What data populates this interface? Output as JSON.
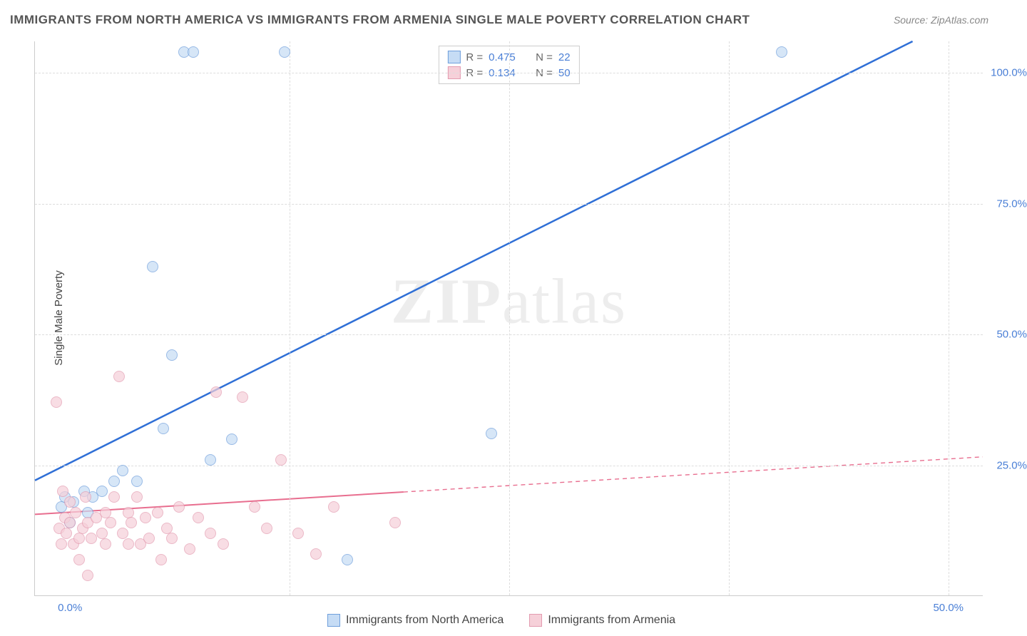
{
  "title": "IMMIGRANTS FROM NORTH AMERICA VS IMMIGRANTS FROM ARMENIA SINGLE MALE POVERTY CORRELATION CHART",
  "source": "Source: ZipAtlas.com",
  "watermark": {
    "part1": "ZIP",
    "part2": "atlas"
  },
  "chart": {
    "type": "scatter",
    "background_color": "#ffffff",
    "grid_color": "#dddddd",
    "axis_color": "#cccccc",
    "y_axis_title": "Single Male Poverty",
    "y_axis_color": "#444444",
    "xlim_pct": [
      -2,
      52
    ],
    "ylim_pct": [
      0,
      106
    ],
    "x_ticks": [
      {
        "value": 0.0,
        "label": "0.0%",
        "color": "#4a7fd6"
      },
      {
        "value": 50.0,
        "label": "50.0%",
        "color": "#4a7fd6"
      }
    ],
    "y_ticks": [
      {
        "value": 25.0,
        "label": "25.0%",
        "color": "#4a7fd6"
      },
      {
        "value": 50.0,
        "label": "50.0%",
        "color": "#4a7fd6"
      },
      {
        "value": 75.0,
        "label": "75.0%",
        "color": "#4a7fd6"
      },
      {
        "value": 100.0,
        "label": "100.0%",
        "color": "#4a7fd6"
      }
    ],
    "x_grid_at": [
      12.5,
      25.0,
      37.5,
      50.0
    ],
    "y_grid_at": [
      25.0,
      50.0,
      75.0,
      100.0
    ],
    "series": [
      {
        "id": "na",
        "label": "Immigrants from North America",
        "marker_fill": "#c6dcf5",
        "marker_stroke": "#6f9fdc",
        "marker_radius_px": 8,
        "line_color": "#2f6fd6",
        "line_width": 2.5,
        "line_dash_after_x": null,
        "R": 0.475,
        "N": 22,
        "trend": {
          "x1": -2,
          "y1": 22,
          "x2": 48,
          "y2": 106
        },
        "points": [
          {
            "x": -0.5,
            "y": 17
          },
          {
            "x": -0.3,
            "y": 19
          },
          {
            "x": 0.0,
            "y": 14
          },
          {
            "x": 0.2,
            "y": 18
          },
          {
            "x": 0.8,
            "y": 20
          },
          {
            "x": 1.0,
            "y": 16
          },
          {
            "x": 1.3,
            "y": 19
          },
          {
            "x": 1.8,
            "y": 20
          },
          {
            "x": 2.5,
            "y": 22
          },
          {
            "x": 3.0,
            "y": 24
          },
          {
            "x": 3.8,
            "y": 22
          },
          {
            "x": 4.7,
            "y": 63
          },
          {
            "x": 5.3,
            "y": 32
          },
          {
            "x": 5.8,
            "y": 46
          },
          {
            "x": 6.5,
            "y": 104
          },
          {
            "x": 7.0,
            "y": 104
          },
          {
            "x": 8.0,
            "y": 26
          },
          {
            "x": 9.2,
            "y": 30
          },
          {
            "x": 12.2,
            "y": 104
          },
          {
            "x": 15.8,
            "y": 7
          },
          {
            "x": 24.0,
            "y": 31
          },
          {
            "x": 40.5,
            "y": 104
          }
        ]
      },
      {
        "id": "arm",
        "label": "Immigrants from Armenia",
        "marker_fill": "#f6d0d9",
        "marker_stroke": "#e39bb0",
        "marker_radius_px": 8,
        "line_color": "#e86e8f",
        "line_width": 2,
        "line_dash_after_x": 19,
        "R": 0.134,
        "N": 50,
        "trend": {
          "x1": -2,
          "y1": 15.5,
          "x2": 52,
          "y2": 26.5
        },
        "points": [
          {
            "x": -0.8,
            "y": 37
          },
          {
            "x": -0.6,
            "y": 13
          },
          {
            "x": -0.5,
            "y": 10
          },
          {
            "x": -0.4,
            "y": 20
          },
          {
            "x": -0.3,
            "y": 15
          },
          {
            "x": -0.2,
            "y": 12
          },
          {
            "x": 0.0,
            "y": 14
          },
          {
            "x": 0.0,
            "y": 18
          },
          {
            "x": 0.2,
            "y": 10
          },
          {
            "x": 0.3,
            "y": 16
          },
          {
            "x": 0.5,
            "y": 11
          },
          {
            "x": 0.5,
            "y": 7
          },
          {
            "x": 0.7,
            "y": 13
          },
          {
            "x": 0.9,
            "y": 19
          },
          {
            "x": 1.0,
            "y": 14
          },
          {
            "x": 1.0,
            "y": 4
          },
          {
            "x": 1.2,
            "y": 11
          },
          {
            "x": 1.5,
            "y": 15
          },
          {
            "x": 1.8,
            "y": 12
          },
          {
            "x": 2.0,
            "y": 16
          },
          {
            "x": 2.0,
            "y": 10
          },
          {
            "x": 2.3,
            "y": 14
          },
          {
            "x": 2.5,
            "y": 19
          },
          {
            "x": 2.8,
            "y": 42
          },
          {
            "x": 3.0,
            "y": 12
          },
          {
            "x": 3.3,
            "y": 10
          },
          {
            "x": 3.3,
            "y": 16
          },
          {
            "x": 3.5,
            "y": 14
          },
          {
            "x": 3.8,
            "y": 19
          },
          {
            "x": 4.0,
            "y": 10
          },
          {
            "x": 4.3,
            "y": 15
          },
          {
            "x": 4.5,
            "y": 11
          },
          {
            "x": 5.0,
            "y": 16
          },
          {
            "x": 5.2,
            "y": 7
          },
          {
            "x": 5.5,
            "y": 13
          },
          {
            "x": 5.8,
            "y": 11
          },
          {
            "x": 6.2,
            "y": 17
          },
          {
            "x": 6.8,
            "y": 9
          },
          {
            "x": 7.3,
            "y": 15
          },
          {
            "x": 8.0,
            "y": 12
          },
          {
            "x": 8.3,
            "y": 39
          },
          {
            "x": 8.7,
            "y": 10
          },
          {
            "x": 9.8,
            "y": 38
          },
          {
            "x": 10.5,
            "y": 17
          },
          {
            "x": 11.2,
            "y": 13
          },
          {
            "x": 12.0,
            "y": 26
          },
          {
            "x": 13.0,
            "y": 12
          },
          {
            "x": 14.0,
            "y": 8
          },
          {
            "x": 15.0,
            "y": 17
          },
          {
            "x": 18.5,
            "y": 14
          }
        ]
      }
    ],
    "legend_top": {
      "text_color": "#666666",
      "value_color": "#4a7fd6",
      "R_label": "R =",
      "N_label": "N ="
    }
  }
}
